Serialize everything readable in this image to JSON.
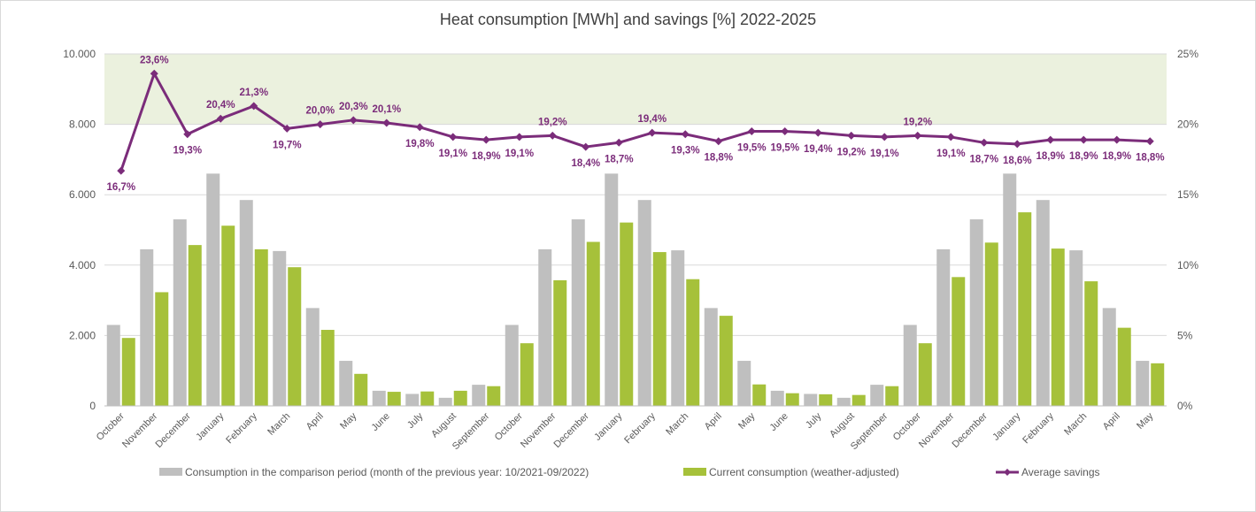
{
  "chart_data": {
    "type": "bar",
    "title": "Heat consumption [MWh] and savings [%] 2022-2025",
    "categories": [
      "October",
      "November",
      "December",
      "January",
      "February",
      "March",
      "April",
      "May",
      "June",
      "July",
      "August",
      "September",
      "October",
      "November",
      "December",
      "January",
      "February",
      "March",
      "April",
      "May",
      "June",
      "July",
      "August",
      "September",
      "October",
      "November",
      "December",
      "January",
      "February",
      "March",
      "April",
      "May"
    ],
    "series": [
      {
        "name": "Consumption in the comparison period (month of the previous year: 10/2021-09/2022)",
        "kind": "bar",
        "axis": "left",
        "color": "#bfbfbf",
        "values": [
          2300,
          4450,
          5300,
          6600,
          5850,
          4400,
          2780,
          1280,
          430,
          340,
          230,
          600,
          2300,
          4450,
          5300,
          6600,
          5850,
          4420,
          2780,
          1280,
          430,
          340,
          230,
          600,
          2300,
          4450,
          5300,
          6600,
          5850,
          4420,
          2780,
          1280
        ]
      },
      {
        "name": "Current consumption (weather-adjusted)",
        "kind": "bar",
        "axis": "left",
        "color": "#a6c13a",
        "values": [
          1930,
          3230,
          4570,
          5120,
          4450,
          3940,
          2160,
          910,
          400,
          410,
          430,
          560,
          1780,
          3570,
          4660,
          5210,
          4370,
          3600,
          2560,
          610,
          360,
          330,
          310,
          560,
          1780,
          3660,
          4640,
          5500,
          4470,
          3540,
          2220,
          1210
        ]
      },
      {
        "name": "Average savings",
        "kind": "line",
        "axis": "right",
        "color": "#7b2c7a",
        "values": [
          16.7,
          23.6,
          19.3,
          20.4,
          21.3,
          19.7,
          20.0,
          20.3,
          20.1,
          19.8,
          19.1,
          18.9,
          19.1,
          19.2,
          18.4,
          18.7,
          19.4,
          19.3,
          18.8,
          19.5,
          19.5,
          19.4,
          19.2,
          19.1,
          19.2,
          19.1,
          18.7,
          18.6,
          18.9,
          18.9,
          18.9,
          18.8
        ],
        "labels": [
          "16,7%",
          "23,6%",
          "19,3%",
          "20,4%",
          "21,3%",
          "19,7%",
          "20,0%",
          "20,3%",
          "20,1%",
          "19,8%",
          "19,1%",
          "18,9%",
          "19,1%",
          "19,2%",
          "18,4%",
          "18,7%",
          "19,4%",
          "19,3%",
          "18,8%",
          "19,5%",
          "19,5%",
          "19,4%",
          "19,2%",
          "19,1%",
          "19,2%",
          "19,1%",
          "18,7%",
          "18,6%",
          "18,9%",
          "18,9%",
          "18,9%",
          "18,8%"
        ]
      }
    ],
    "y_left": {
      "min": 0,
      "max": 10000,
      "ticks": [
        "0",
        "2.000",
        "4.000",
        "6.000",
        "8.000",
        "10.000"
      ]
    },
    "y_right": {
      "min": 0,
      "max": 25,
      "ticks": [
        "0%",
        "5%",
        "10%",
        "15%",
        "20%",
        "25%"
      ]
    },
    "highlight_band": {
      "from": 20,
      "to": 25,
      "axis": "right",
      "color": "#ebf1de"
    },
    "grid": true,
    "legend_position": "bottom"
  }
}
